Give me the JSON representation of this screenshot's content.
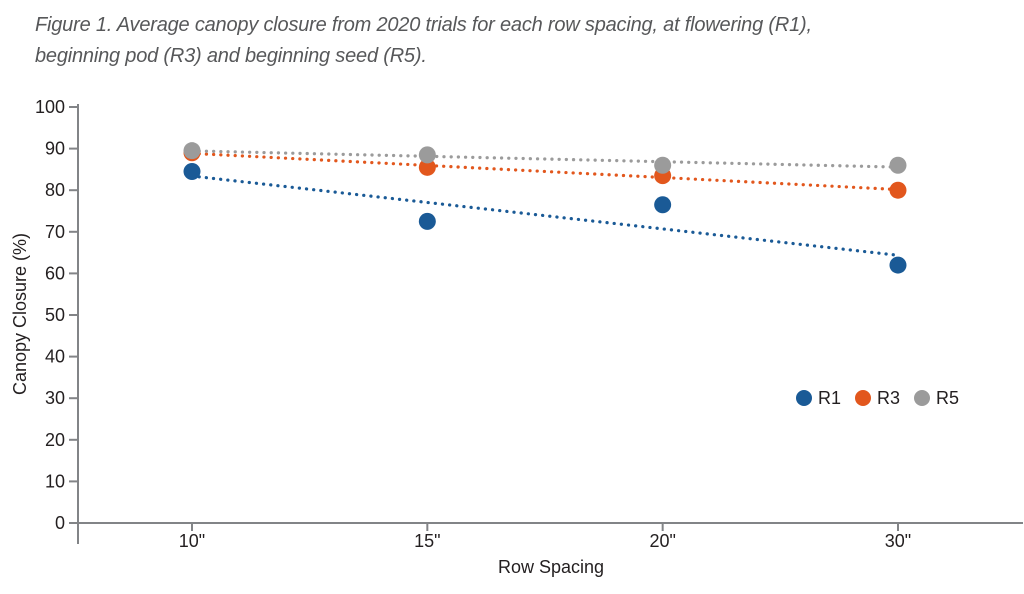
{
  "figure_title": {
    "lines": [
      "Figure 1. Average canopy closure from 2020 trials for each row spacing, at flowering (R1),",
      "beginning pod (R3) and beginning seed (R5)."
    ]
  },
  "chart_data": {
    "type": "scatter",
    "categories": [
      "10\"",
      "15\"",
      "20\"",
      "30\""
    ],
    "series": [
      {
        "name": "R1",
        "color": "#1a5a96",
        "values": [
          84.5,
          72.5,
          76.5,
          62
        ],
        "trendline": "linear-dotted"
      },
      {
        "name": "R3",
        "color": "#e2571d",
        "values": [
          89,
          85.5,
          83.5,
          80
        ],
        "trendline": "linear-dotted"
      },
      {
        "name": "R5",
        "color": "#9b9b9b",
        "values": [
          89.5,
          88.5,
          86,
          86
        ],
        "trendline": "linear-dotted"
      }
    ],
    "xlabel": "Row Spacing",
    "ylabel": "Canopy Closure (%)",
    "ylim": [
      0,
      100
    ],
    "ytick_step": 10,
    "grid": false,
    "legend_position": "right-middle"
  },
  "colors": {
    "axis": "#828487",
    "tick_text": "#231f20",
    "title_text": "#57585a"
  }
}
